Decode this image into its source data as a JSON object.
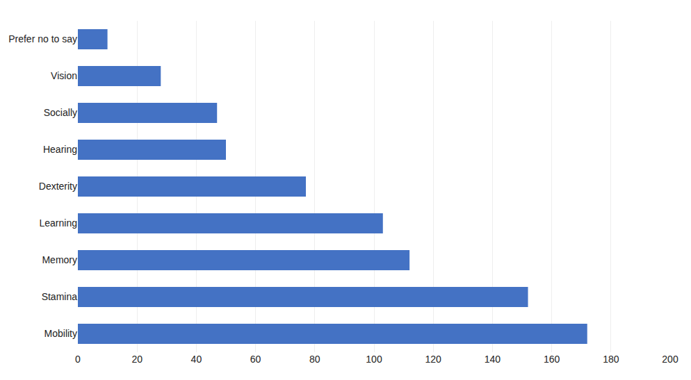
{
  "chart_data": {
    "type": "bar",
    "orientation": "horizontal",
    "categories": [
      "Mobility",
      "Stamina",
      "Memory",
      "Learning",
      "Dexterity",
      "Hearing",
      "Socially",
      "Vision",
      "Prefer no to say"
    ],
    "values": [
      172,
      152,
      112,
      103,
      77,
      50,
      47,
      28,
      10
    ],
    "color": "#4472C4",
    "xlim": [
      0,
      200
    ],
    "xticks": [
      0,
      20,
      40,
      60,
      80,
      100,
      120,
      140,
      160,
      180,
      200
    ],
    "grid": true
  }
}
